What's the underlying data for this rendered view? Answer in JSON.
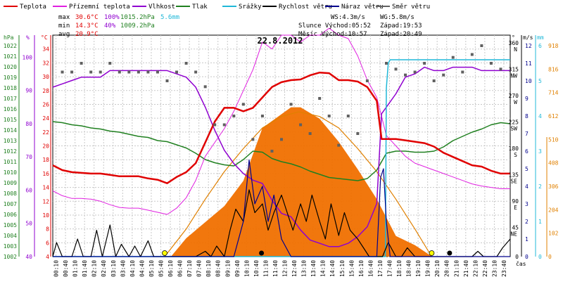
{
  "title": "22.8.2012",
  "legend": [
    {
      "label": "Teplota",
      "color": "#e00000"
    },
    {
      "label": "Přízemní teplota",
      "color": "#e020e0"
    },
    {
      "label": "Vlhkost",
      "color": "#9000d0"
    },
    {
      "label": "Tlak",
      "color": "#208020"
    },
    {
      "label": "Srážky",
      "color": "#20b8d8"
    },
    {
      "label": "Rychlost větru",
      "color": "#000000"
    },
    {
      "label": "Náraz větru",
      "color": "#00008c"
    },
    {
      "label": "Směr větru",
      "color": "#606060"
    }
  ],
  "stats": {
    "max_label": "max",
    "max_temp": "30.6°C",
    "max_hum": "100%",
    "max_press": "1015.2hPa",
    "rain": "5.6mm",
    "min_label": "min",
    "min_temp": "14.3°C",
    "min_hum": "40%",
    "min_press": "1009.2hPa",
    "avg_label": "avg",
    "avg_temp": "20.9°C"
  },
  "info": {
    "ws": "WS:4.3m/s",
    "wg": "WG:5.8m/s",
    "sun_rise": "Slunce Východ:05:52",
    "sun_set": "Západ:19:53",
    "moon_rise": "Měsíc Východ:10:57",
    "moon_set": "Západ:20:49"
  },
  "axis_units": {
    "hpa": "hPa",
    "percent": "%",
    "celsius": "°C",
    "deg": "°",
    "ms": "m/s",
    "mm": "mm",
    "time": "čas"
  },
  "axis_ticks": {
    "hpa": [
      "1002",
      "1003",
      "1004",
      "1005",
      "1006",
      "1007",
      "1008",
      "1009",
      "1010",
      "1011",
      "1012",
      "1013",
      "1014",
      "1015",
      "1016",
      "1017",
      "1018",
      "1019",
      "1020",
      "1021",
      "1022"
    ],
    "percent": [
      "40",
      "50",
      "60",
      "70",
      "80",
      "90",
      "100"
    ],
    "celsius": [
      "4",
      "6",
      "8",
      "10",
      "12",
      "14",
      "16",
      "18",
      "20",
      "22",
      "24",
      "26",
      "28",
      "30",
      "32",
      "34"
    ],
    "direction": [
      "0",
      "45 NE",
      "90 E",
      "135 SE",
      "180 S",
      "225 SW",
      "270 W",
      "315 NW",
      "360 N"
    ],
    "ms": [
      "0",
      "1",
      "2",
      "3",
      "4",
      "5",
      "6",
      "7",
      "8",
      "9",
      "10",
      "11",
      "12"
    ],
    "mm": [
      "0",
      "1",
      "2",
      "3",
      "4",
      "5",
      "6"
    ],
    "solar": [
      "0",
      "102",
      "204",
      "306",
      "408",
      "510",
      "612",
      "714",
      "816",
      "918"
    ],
    "time": [
      "00:10",
      "00:40",
      "01:10",
      "01:40",
      "02:10",
      "02:40",
      "03:10",
      "03:40",
      "04:10",
      "04:40",
      "05:10",
      "05:40",
      "06:10",
      "06:40",
      "07:10",
      "07:40",
      "08:10",
      "08:40",
      "09:10",
      "09:40",
      "10:10",
      "10:40",
      "11:10",
      "11:40",
      "12:10",
      "12:40",
      "13:10",
      "13:40",
      "14:10",
      "14:40",
      "15:10",
      "15:40",
      "16:10",
      "16:40",
      "17:10",
      "17:40",
      "18:10",
      "18:40",
      "19:10",
      "19:40",
      "20:10",
      "20:40",
      "21:10",
      "21:40",
      "22:10",
      "22:40",
      "23:10",
      "23:40"
    ]
  },
  "chart_data": {
    "type": "line",
    "title": "22.8.2012",
    "x_unit": "hour of day",
    "x_range": [
      0,
      24
    ],
    "series": [
      {
        "name": "Teplota",
        "axis": "celsius",
        "color": "#e00000",
        "x": [
          0,
          0.5,
          1,
          1.5,
          2,
          2.5,
          3,
          3.5,
          4,
          4.5,
          5,
          5.5,
          6,
          6.5,
          7,
          7.5,
          8,
          8.5,
          9,
          9.5,
          10,
          10.5,
          11,
          11.5,
          12,
          12.5,
          13,
          13.5,
          14,
          14.5,
          15,
          15.5,
          16,
          16.5,
          17,
          17.25,
          17.5,
          18,
          18.5,
          19,
          19.5,
          20,
          20.5,
          21,
          21.5,
          22,
          22.5,
          23,
          23.5,
          24
        ],
        "values": [
          17.2,
          16.5,
          16.2,
          16.1,
          16.0,
          16.0,
          15.8,
          15.6,
          15.6,
          15.6,
          15.3,
          15.1,
          14.6,
          15.5,
          16.2,
          17.5,
          20.5,
          23.5,
          25.5,
          25.5,
          25.0,
          25.5,
          27.0,
          28.5,
          29.2,
          29.5,
          29.6,
          30.2,
          30.6,
          30.5,
          29.5,
          29.5,
          29.3,
          28.5,
          26.5,
          21.0,
          21.0,
          21.0,
          20.8,
          20.6,
          20.4,
          19.9,
          19.0,
          18.4,
          17.8,
          17.2,
          17.0,
          16.4,
          16.0,
          16.0
        ]
      },
      {
        "name": "Přízemní teplota",
        "axis": "celsius",
        "color": "#e020e0",
        "x": [
          0,
          0.5,
          1,
          1.5,
          2,
          2.5,
          3,
          3.5,
          4,
          4.5,
          5,
          5.5,
          6,
          6.5,
          7,
          7.5,
          8,
          8.5,
          9,
          9.5,
          10,
          10.5,
          11,
          11.5,
          12,
          12.5,
          13,
          13.5,
          14,
          14.5,
          15,
          15.5,
          16,
          16.5,
          17,
          17.5,
          18,
          18.5,
          19,
          19.5,
          20,
          20.5,
          21,
          21.5,
          22,
          22.5,
          23,
          23.5,
          24
        ],
        "values": [
          13.5,
          12.8,
          12.4,
          12.4,
          12.3,
          12.0,
          11.5,
          11.1,
          11.0,
          11.0,
          10.7,
          10.4,
          10.1,
          11.0,
          12.5,
          15.0,
          18.5,
          20.5,
          22.5,
          25.0,
          28.0,
          31.0,
          35.0,
          34.0,
          36.0,
          36.0,
          35.0,
          36.0,
          36.0,
          37.0,
          36.0,
          35.5,
          33.0,
          29.5,
          27.0,
          21.5,
          20.0,
          18.5,
          17.5,
          17.0,
          16.5,
          16.0,
          15.5,
          15.0,
          14.5,
          14.2,
          14.0,
          13.8,
          13.8
        ]
      },
      {
        "name": "Vlhkost",
        "axis": "percent",
        "color": "#9000d0",
        "x": [
          0,
          0.5,
          1,
          1.5,
          2,
          2.5,
          3,
          3.5,
          4,
          4.5,
          5,
          5.5,
          6,
          6.5,
          7,
          7.5,
          8,
          8.5,
          9,
          9.5,
          10,
          10.5,
          11,
          11.5,
          12,
          12.5,
          13,
          13.5,
          14,
          14.5,
          15,
          15.5,
          16,
          16.5,
          17,
          17.25,
          17.5,
          18,
          18.5,
          19,
          19.5,
          20,
          20.5,
          21,
          21.5,
          22,
          22.5,
          23,
          23.5,
          24
        ],
        "values": [
          91,
          92,
          93,
          94,
          94,
          94,
          96,
          96,
          96,
          96,
          96,
          96,
          96,
          95,
          94,
          91,
          85,
          78,
          72,
          68,
          65,
          63,
          62,
          57,
          53,
          52,
          48,
          45,
          44,
          43,
          43,
          44,
          46,
          49,
          56,
          83,
          85,
          89,
          94,
          95,
          97,
          96,
          96,
          97,
          97,
          97,
          96,
          96,
          96,
          96
        ]
      },
      {
        "name": "Tlak",
        "axis": "hpa",
        "color": "#208020",
        "x": [
          0,
          0.5,
          1,
          1.5,
          2,
          2.5,
          3,
          3.5,
          4,
          4.5,
          5,
          5.5,
          6,
          6.5,
          7,
          7.5,
          8,
          8.5,
          9,
          9.5,
          10,
          10.5,
          11,
          11.5,
          12,
          12.5,
          13,
          13.5,
          14,
          14.5,
          15,
          15.5,
          16,
          16.5,
          17,
          17.5,
          18,
          18.5,
          19,
          19.5,
          20,
          20.5,
          21,
          21.5,
          22,
          22.5,
          23,
          23.5,
          24
        ],
        "values": [
          1014.8,
          1014.7,
          1014.5,
          1014.4,
          1014.2,
          1014.1,
          1013.9,
          1013.8,
          1013.6,
          1013.4,
          1013.3,
          1013.0,
          1012.9,
          1012.6,
          1012.3,
          1011.8,
          1011.2,
          1010.9,
          1010.7,
          1010.6,
          1011.2,
          1012.0,
          1011.9,
          1011.3,
          1011.0,
          1010.8,
          1010.5,
          1010.1,
          1009.8,
          1009.5,
          1009.4,
          1009.3,
          1009.2,
          1009.4,
          1010.2,
          1011.8,
          1012.0,
          1012.0,
          1011.9,
          1011.9,
          1012.0,
          1012.4,
          1013.0,
          1013.4,
          1013.8,
          1014.1,
          1014.5,
          1014.7,
          1014.6
        ]
      },
      {
        "name": "Srážky",
        "axis": "mm",
        "color": "#20b8d8",
        "x": [
          0,
          17.45,
          17.5,
          17.6,
          17.7,
          18,
          19,
          20,
          21,
          22,
          23,
          24
        ],
        "values": [
          0,
          0,
          4.8,
          5.5,
          5.6,
          5.6,
          5.6,
          5.6,
          5.6,
          5.6,
          5.6,
          5.6
        ]
      },
      {
        "name": "Rychlost větru",
        "axis": "ms",
        "color": "#000000",
        "x": [
          0,
          0.2,
          0.5,
          1,
          1.3,
          1.6,
          2,
          2.3,
          2.6,
          3,
          3.3,
          3.6,
          4,
          4.3,
          4.6,
          5,
          5.3,
          5.6,
          6,
          6.5,
          7,
          7.5,
          8,
          8.3,
          8.6,
          9,
          9.3,
          9.6,
          10,
          10.3,
          10.6,
          11,
          11.3,
          11.6,
          12,
          12.3,
          12.6,
          13,
          13.3,
          13.6,
          14,
          14.3,
          14.6,
          15,
          15.3,
          15.6,
          16,
          16.3,
          16.6,
          17,
          17.3,
          17.6,
          18,
          18.3,
          18.6,
          19,
          19.3,
          19.6,
          20,
          20.3,
          20.6,
          21,
          21.3,
          21.6,
          22,
          22.3,
          22.6,
          23,
          23.3,
          23.6,
          24
        ],
        "values": [
          0,
          0.8,
          0,
          0,
          1.0,
          0,
          0,
          1.5,
          0,
          1.8,
          0,
          0.7,
          0,
          0.6,
          0,
          0.9,
          0,
          0,
          0,
          0,
          0,
          0,
          0.3,
          0,
          0.6,
          0,
          1.5,
          2.7,
          2.0,
          3.8,
          2.5,
          3.0,
          1.5,
          2.5,
          3.5,
          2.5,
          1.5,
          3.0,
          2.0,
          3.5,
          2.0,
          1.0,
          3.0,
          1.2,
          2.5,
          1.5,
          1.0,
          0.5,
          0,
          0,
          0,
          0.8,
          0,
          0,
          0.5,
          0,
          0,
          0,
          0,
          0,
          0,
          0,
          0,
          0,
          0,
          0.3,
          0,
          0,
          0,
          0.5,
          1.0
        ]
      },
      {
        "name": "Náraz větru",
        "axis": "ms",
        "color": "#00008c",
        "x": [
          0,
          9.5,
          10,
          10.3,
          10.6,
          11,
          11.3,
          11.6,
          12,
          12.5,
          17,
          17.2,
          17.35,
          17.5,
          17.7,
          18,
          24
        ],
        "values": [
          0,
          0,
          2.0,
          5.5,
          3.0,
          4.0,
          2.0,
          3.5,
          1.0,
          0,
          0,
          4.5,
          5.0,
          2.0,
          0,
          0,
          0
        ]
      },
      {
        "name": "Směr větru",
        "axis": "direction",
        "color": "#606060",
        "x": [
          0.5,
          1,
          1.5,
          2,
          2.5,
          3,
          3.5,
          4,
          4.5,
          5,
          5.5,
          6,
          6.5,
          7,
          7.5,
          8,
          8.5,
          9,
          9.5,
          10,
          10.5,
          11,
          11.5,
          12,
          12.5,
          13,
          13.5,
          14,
          14.5,
          15,
          15.5,
          16,
          16.5,
          17.5,
          18,
          18.5,
          19,
          19.5,
          20,
          20.5,
          21,
          21.5,
          22,
          22.5,
          23,
          23.5
        ],
        "values": [
          315,
          315,
          330,
          315,
          315,
          330,
          315,
          315,
          315,
          315,
          315,
          300,
          315,
          330,
          315,
          290,
          225,
          225,
          240,
          260,
          200,
          240,
          180,
          200,
          260,
          225,
          210,
          270,
          240,
          190,
          240,
          210,
          300,
          330,
          320,
          310,
          315,
          330,
          300,
          310,
          340,
          315,
          345,
          360,
          330,
          320
        ]
      },
      {
        "name": "Solar",
        "axis": "solar",
        "color": "#f07000",
        "x": [
          0,
          6.2,
          7,
          8,
          9,
          10,
          11,
          12,
          12.5,
          13,
          14,
          15,
          16,
          17,
          18,
          19,
          19.9,
          24
        ],
        "values": [
          0,
          0,
          80,
          150,
          220,
          330,
          560,
          620,
          650,
          650,
          600,
          500,
          380,
          250,
          90,
          50,
          0,
          0
        ]
      },
      {
        "name": "Sun elevation",
        "axis": "solar",
        "color": "#e08000",
        "x": [
          5.87,
          7,
          8,
          9,
          10,
          11,
          12,
          12.9,
          14,
          15,
          16,
          17,
          18,
          19,
          19.88
        ],
        "values": [
          0,
          120,
          250,
          370,
          470,
          560,
          610,
          630,
          610,
          560,
          470,
          370,
          250,
          120,
          0
        ]
      }
    ]
  }
}
